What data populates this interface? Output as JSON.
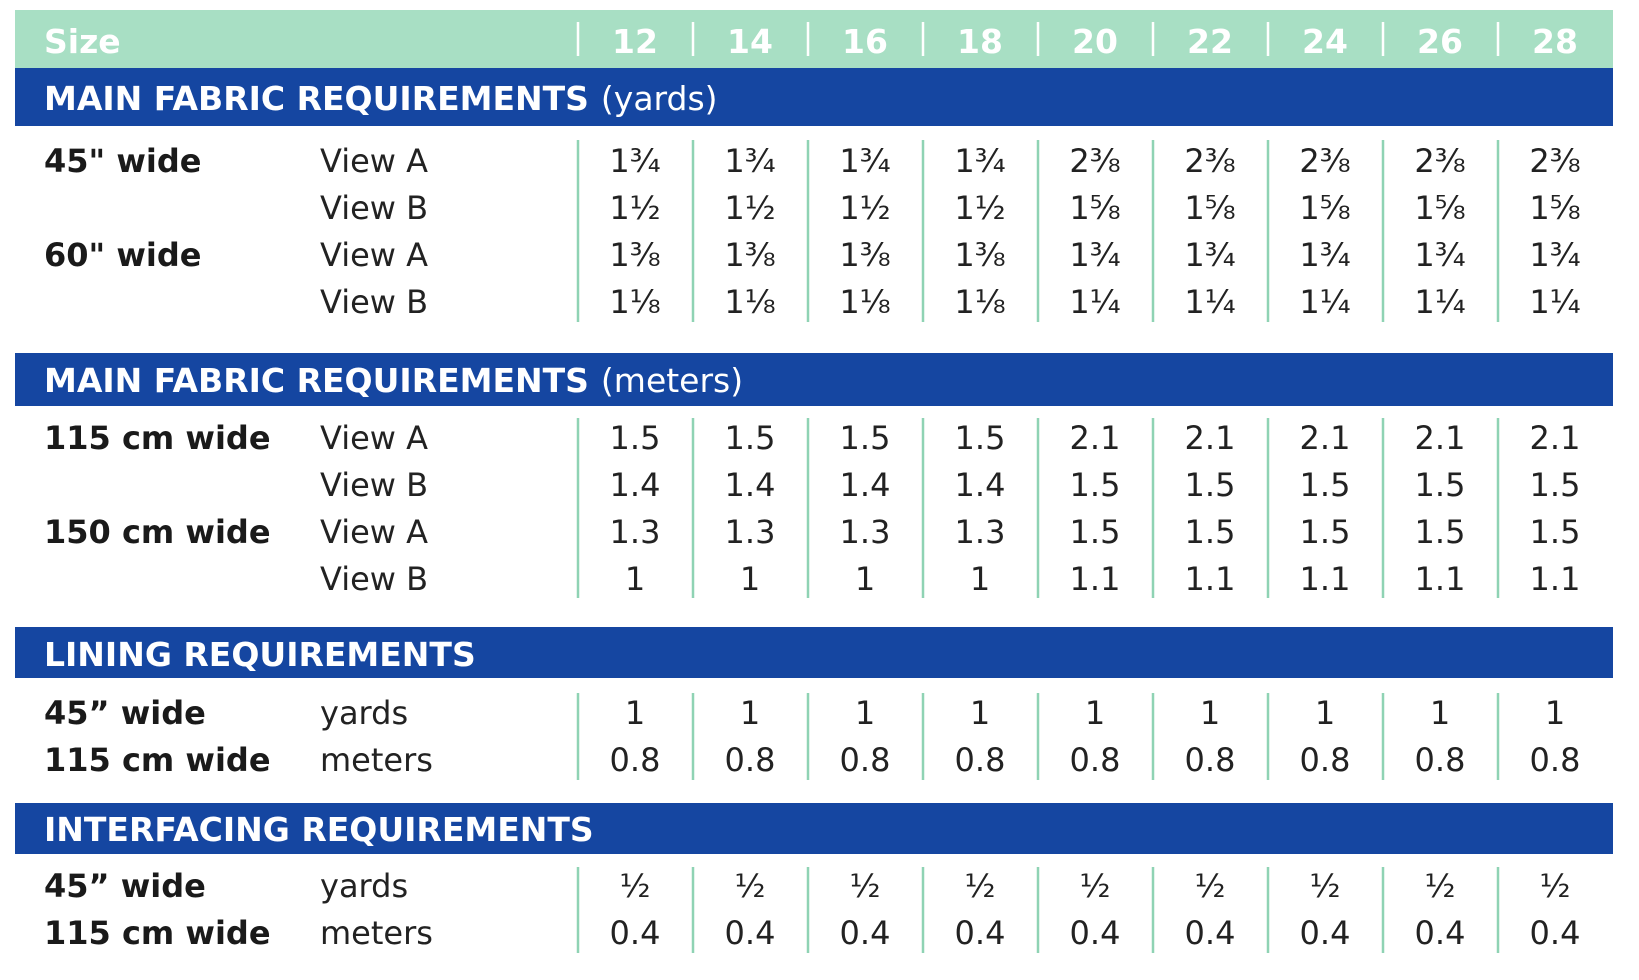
{
  "header": {
    "size_label": "Size",
    "sizes": [
      "12",
      "14",
      "16",
      "18",
      "20",
      "22",
      "24",
      "26",
      "28"
    ]
  },
  "sections": [
    {
      "title": "MAIN FABRIC REQUIREMENTS",
      "unit": "(yards)",
      "rows": [
        {
          "width": "45\" wide",
          "label": "View A",
          "values": [
            "1¾",
            "1¾",
            "1¾",
            "1¾",
            "2⅜",
            "2⅜",
            "2⅜",
            "2⅜",
            "2⅜"
          ]
        },
        {
          "width": "",
          "label": "View B",
          "values": [
            "1½",
            "1½",
            "1½",
            "1½",
            "1⅝",
            "1⅝",
            "1⅝",
            "1⅝",
            "1⅝"
          ]
        },
        {
          "width": "60\" wide",
          "label": "View A",
          "values": [
            "1⅜",
            "1⅜",
            "1⅜",
            "1⅜",
            "1¾",
            "1¾",
            "1¾",
            "1¾",
            "1¾"
          ]
        },
        {
          "width": "",
          "label": "View B",
          "values": [
            "1⅛",
            "1⅛",
            "1⅛",
            "1⅛",
            "1¼",
            "1¼",
            "1¼",
            "1¼",
            "1¼"
          ]
        }
      ]
    },
    {
      "title": "MAIN FABRIC REQUIREMENTS",
      "unit": "(meters)",
      "rows": [
        {
          "width": "115 cm wide",
          "label": "View A",
          "values": [
            "1.5",
            "1.5",
            "1.5",
            "1.5",
            "2.1",
            "2.1",
            "2.1",
            "2.1",
            "2.1"
          ]
        },
        {
          "width": "",
          "label": "View B",
          "values": [
            "1.4",
            "1.4",
            "1.4",
            "1.4",
            "1.5",
            "1.5",
            "1.5",
            "1.5",
            "1.5"
          ]
        },
        {
          "width": "150 cm wide",
          "label": "View A",
          "values": [
            "1.3",
            "1.3",
            "1.3",
            "1.3",
            "1.5",
            "1.5",
            "1.5",
            "1.5",
            "1.5"
          ]
        },
        {
          "width": "",
          "label": "View B",
          "values": [
            "1",
            "1",
            "1",
            "1",
            "1.1",
            "1.1",
            "1.1",
            "1.1",
            "1.1"
          ]
        }
      ]
    },
    {
      "title": "LINING REQUIREMENTS",
      "unit": "",
      "rows": [
        {
          "width": "45” wide",
          "label": "yards",
          "values": [
            "1",
            "1",
            "1",
            "1",
            "1",
            "1",
            "1",
            "1",
            "1"
          ]
        },
        {
          "width": "115 cm wide",
          "label": "meters",
          "values": [
            "0.8",
            "0.8",
            "0.8",
            "0.8",
            "0.8",
            "0.8",
            "0.8",
            "0.8",
            "0.8"
          ]
        }
      ]
    },
    {
      "title": "INTERFACING REQUIREMENTS",
      "unit": "",
      "rows": [
        {
          "width": "45” wide",
          "label": "yards",
          "values": [
            "½",
            "½",
            "½",
            "½",
            "½",
            "½",
            "½",
            "½",
            "½"
          ]
        },
        {
          "width": "115 cm wide",
          "label": "meters",
          "values": [
            "0.4",
            "0.4",
            "0.4",
            "0.4",
            "0.4",
            "0.4",
            "0.4",
            "0.4",
            "0.4"
          ]
        }
      ]
    }
  ],
  "colors": {
    "header_band": "#a8dfc4",
    "section_band": "#1546a1",
    "column_divider": "#8fd3b4"
  }
}
